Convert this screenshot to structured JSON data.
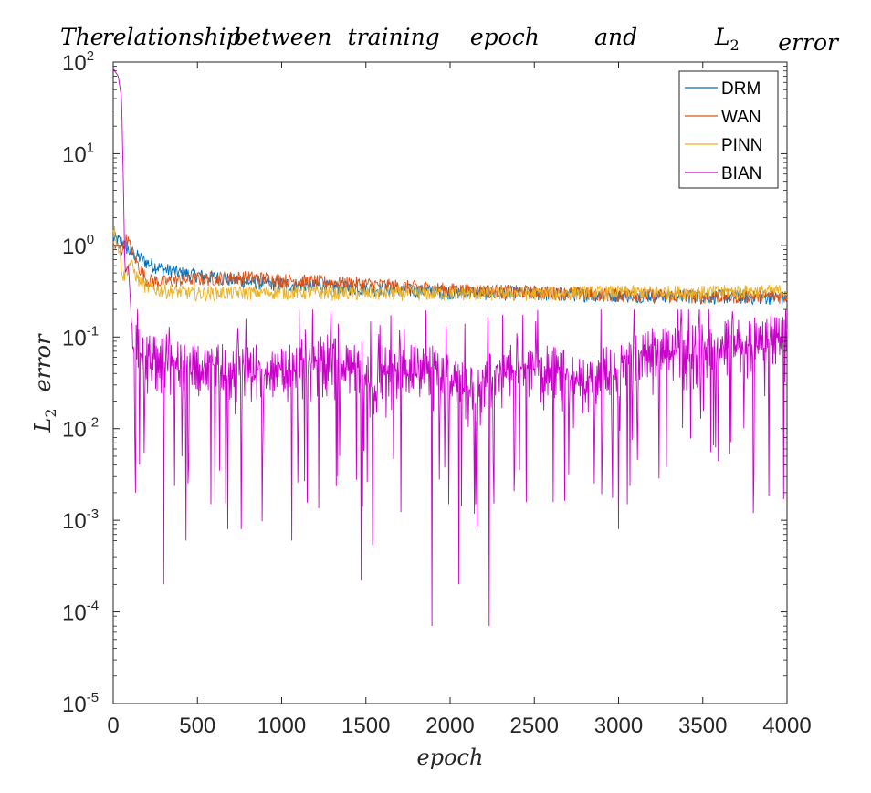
{
  "chart_data": {
    "type": "line",
    "title": "The relationship between training epoch and L2 error",
    "title_words": [
      "The",
      "relationship",
      "between",
      "training",
      "epoch",
      "and",
      "L",
      "error"
    ],
    "title_subscript": "2",
    "xlabel": "epoch",
    "ylabel": "L2 error",
    "ylabel_main": "L",
    "ylabel_sub": "2",
    "ylabel_rest": "error",
    "yscale": "log",
    "xlim": [
      0,
      4000
    ],
    "ylim": [
      1e-05,
      100
    ],
    "x_ticks": [
      0,
      500,
      1000,
      1500,
      2000,
      2500,
      3000,
      3500,
      4000
    ],
    "y_ticks": [
      {
        "base": "10",
        "exp": "-5",
        "value": 1e-05
      },
      {
        "base": "10",
        "exp": "-4",
        "value": 0.0001
      },
      {
        "base": "10",
        "exp": "-3",
        "value": 0.001
      },
      {
        "base": "10",
        "exp": "-2",
        "value": 0.01
      },
      {
        "base": "10",
        "exp": "-1",
        "value": 0.1
      },
      {
        "base": "10",
        "exp": "0",
        "value": 1
      },
      {
        "base": "10",
        "exp": "1",
        "value": 10
      },
      {
        "base": "10",
        "exp": "2",
        "value": 100
      }
    ],
    "legend_position": "top-right",
    "series": [
      {
        "name": "DRM",
        "color": "#0072BD",
        "points": [
          [
            0,
            1.2
          ],
          [
            50,
            1.1
          ],
          [
            100,
            0.85
          ],
          [
            150,
            0.75
          ],
          [
            200,
            0.65
          ],
          [
            300,
            0.55
          ],
          [
            400,
            0.5
          ],
          [
            600,
            0.45
          ],
          [
            800,
            0.4
          ],
          [
            1000,
            0.38
          ],
          [
            1500,
            0.34
          ],
          [
            2000,
            0.31
          ],
          [
            2500,
            0.3
          ],
          [
            3000,
            0.29
          ],
          [
            3500,
            0.28
          ],
          [
            4000,
            0.27
          ]
        ]
      },
      {
        "name": "WAN",
        "color": "#D95319",
        "points": [
          [
            0,
            1.0
          ],
          [
            50,
            0.9
          ],
          [
            80,
            1.2
          ],
          [
            150,
            0.6
          ],
          [
            200,
            0.42
          ],
          [
            300,
            0.4
          ],
          [
            400,
            0.42
          ],
          [
            600,
            0.44
          ],
          [
            800,
            0.45
          ],
          [
            1000,
            0.42
          ],
          [
            1500,
            0.38
          ],
          [
            2000,
            0.33
          ],
          [
            2500,
            0.31
          ],
          [
            3000,
            0.29
          ],
          [
            3500,
            0.28
          ],
          [
            4000,
            0.28
          ]
        ]
      },
      {
        "name": "PINN",
        "color": "#EDB120",
        "points": [
          [
            0,
            1.6
          ],
          [
            30,
            1.0
          ],
          [
            60,
            0.45
          ],
          [
            100,
            0.65
          ],
          [
            150,
            0.42
          ],
          [
            200,
            0.35
          ],
          [
            300,
            0.32
          ],
          [
            500,
            0.3
          ],
          [
            1000,
            0.31
          ],
          [
            1500,
            0.3
          ],
          [
            2000,
            0.3
          ],
          [
            2500,
            0.3
          ],
          [
            3000,
            0.31
          ],
          [
            3500,
            0.31
          ],
          [
            4000,
            0.32
          ]
        ]
      },
      {
        "name": "BIAN",
        "color": "#CC00CC",
        "points": [
          [
            0,
            85
          ],
          [
            30,
            70
          ],
          [
            50,
            40
          ],
          [
            60,
            5
          ],
          [
            70,
            0.5
          ],
          [
            90,
            0.6
          ],
          [
            100,
            0.3
          ],
          [
            110,
            0.12
          ],
          [
            200,
            0.08
          ],
          [
            500,
            0.06
          ],
          [
            1000,
            0.06
          ],
          [
            1300,
            0.08
          ],
          [
            1500,
            0.05
          ],
          [
            1550,
            0.03
          ],
          [
            1600,
            0.06
          ],
          [
            1700,
            0.06
          ],
          [
            1900,
            0.06
          ],
          [
            2000,
            0.05
          ],
          [
            2150,
            0.03
          ],
          [
            2300,
            0.06
          ],
          [
            2600,
            0.06
          ],
          [
            2800,
            0.04
          ],
          [
            3000,
            0.07
          ],
          [
            3200,
            0.09
          ],
          [
            3500,
            0.1
          ],
          [
            3800,
            0.12
          ],
          [
            4000,
            0.13
          ]
        ],
        "dips": [
          [
            130,
            0.002
          ],
          [
            300,
            0.0002
          ],
          [
            430,
            0.0006
          ],
          [
            580,
            0.0015
          ],
          [
            680,
            0.0008
          ],
          [
            760,
            0.0008
          ],
          [
            1060,
            0.0006
          ],
          [
            1330,
            0.003
          ],
          [
            1470,
            0.00022
          ],
          [
            1480,
            0.0014
          ],
          [
            1890,
            7e-05
          ],
          [
            1990,
            0.0015
          ],
          [
            2050,
            0.0002
          ],
          [
            2150,
            0.0015
          ],
          [
            2230,
            7e-05
          ],
          [
            3000,
            0.0008
          ],
          [
            3050,
            0.0015
          ],
          [
            3800,
            0.0012
          ],
          [
            3980,
            0.0017
          ]
        ]
      }
    ]
  }
}
